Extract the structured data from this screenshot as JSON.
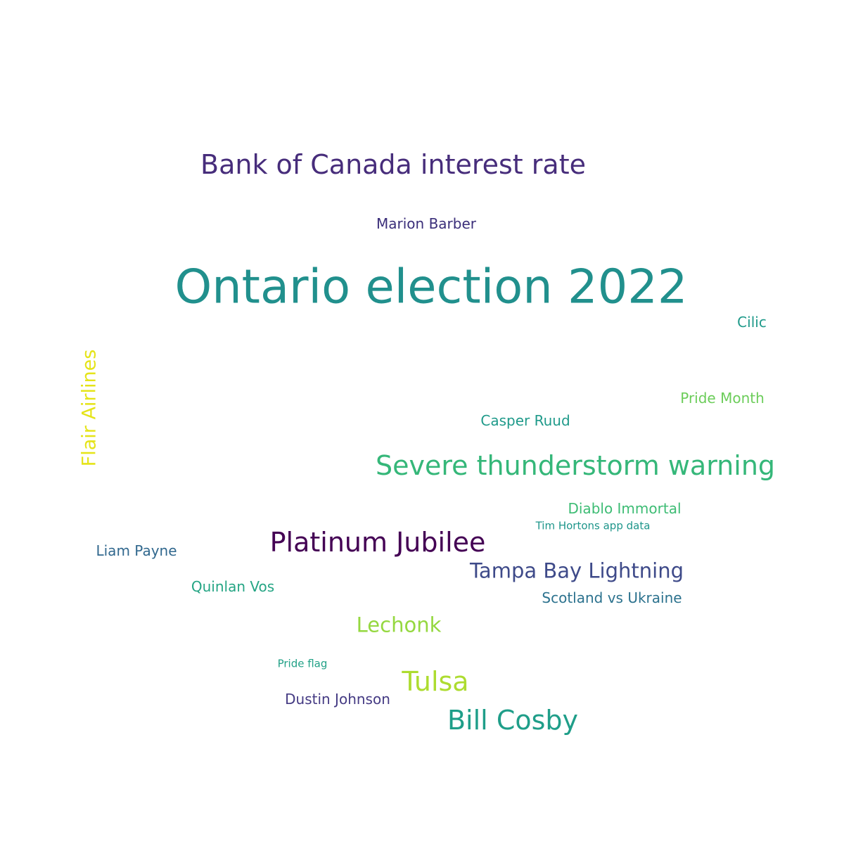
{
  "words": [
    {
      "text": "Ontario election 2022",
      "color": "#21908d"
    },
    {
      "text": "Bank of Canada interest rate",
      "color": "#472d7b"
    },
    {
      "text": "Marion Barber",
      "color": "#3b2f7a"
    },
    {
      "text": "Cilic",
      "color": "#1f9a8a"
    },
    {
      "text": "Flair Airlines",
      "color": "#e5e419",
      "orientation": "vertical"
    },
    {
      "text": "Pride Month",
      "color": "#6ccd5a"
    },
    {
      "text": "Casper Ruud",
      "color": "#1f9a8a"
    },
    {
      "text": "Severe thunderstorm warning",
      "color": "#35b779"
    },
    {
      "text": "Diablo Immortal",
      "color": "#3dbc74"
    },
    {
      "text": "Tim Hortons app data",
      "color": "#1f968b"
    },
    {
      "text": "Platinum Jubilee",
      "color": "#440154"
    },
    {
      "text": "Liam Payne",
      "color": "#31688e"
    },
    {
      "text": "Tampa Bay Lightning",
      "color": "#3e4a89"
    },
    {
      "text": "Quinlan Vos",
      "color": "#25a584"
    },
    {
      "text": "Scotland vs Ukraine",
      "color": "#2c728e"
    },
    {
      "text": "Lechonk",
      "color": "#95d840"
    },
    {
      "text": "Pride flag",
      "color": "#22a187"
    },
    {
      "text": "Tulsa",
      "color": "#addc30"
    },
    {
      "text": "Dustin Johnson",
      "color": "#443a83"
    },
    {
      "text": "Bill Cosby",
      "color": "#1f9e89"
    }
  ]
}
